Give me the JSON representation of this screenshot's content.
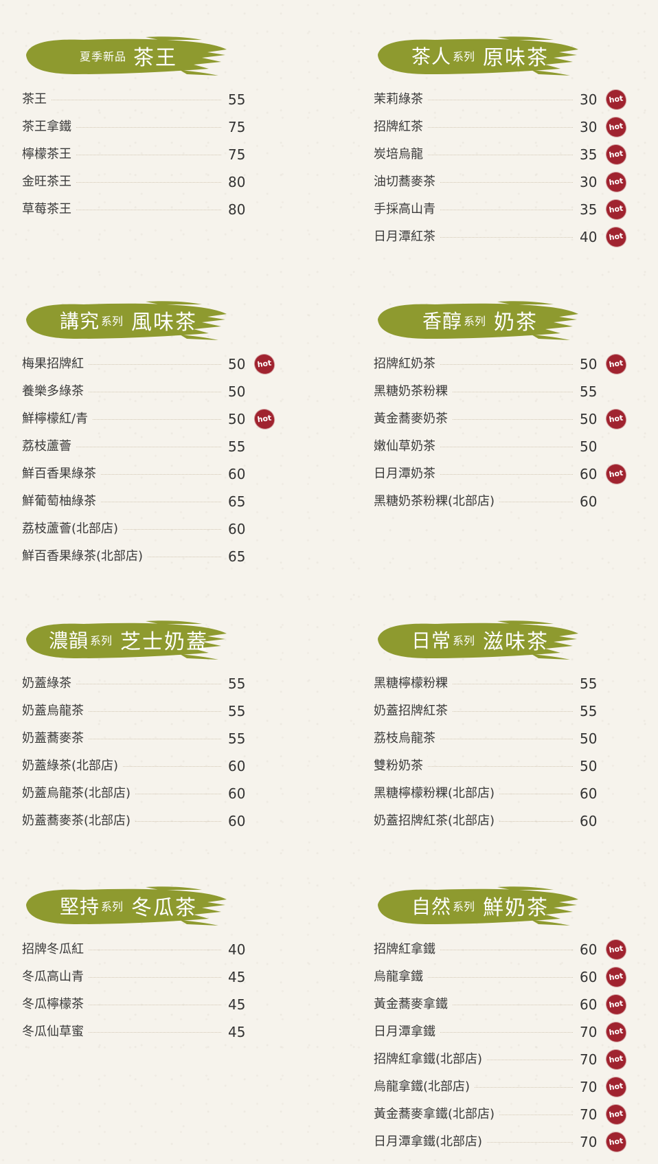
{
  "colors": {
    "banner": "#8e9a2f",
    "hot_badge": "#a0232f",
    "background": "#f6f3ec"
  },
  "hot_badge_label": "hot",
  "sections": [
    {
      "id": "cha-wang",
      "sub": "夏季新品",
      "series": "",
      "title": "茶王",
      "items": [
        {
          "name": "茶王",
          "price": "55",
          "hot": false
        },
        {
          "name": "茶王拿鐵",
          "price": "75",
          "hot": false
        },
        {
          "name": "檸檬茶王",
          "price": "75",
          "hot": false
        },
        {
          "name": "金旺茶王",
          "price": "80",
          "hot": false
        },
        {
          "name": "草莓茶王",
          "price": "80",
          "hot": false
        }
      ]
    },
    {
      "id": "yuan-wei-cha",
      "sub": "茶人",
      "series": "系列",
      "title": "原味茶",
      "items": [
        {
          "name": "茉莉綠茶",
          "price": "30",
          "hot": true
        },
        {
          "name": "招牌紅茶",
          "price": "30",
          "hot": true
        },
        {
          "name": "炭培烏龍",
          "price": "35",
          "hot": true
        },
        {
          "name": "油切蕎麥茶",
          "price": "30",
          "hot": true
        },
        {
          "name": "手採高山青",
          "price": "35",
          "hot": true
        },
        {
          "name": "日月潭紅茶",
          "price": "40",
          "hot": true
        }
      ]
    },
    {
      "id": "feng-wei-cha",
      "sub": "講究",
      "series": "系列",
      "title": "風味茶",
      "items": [
        {
          "name": "梅果招牌紅",
          "price": "50",
          "hot": true
        },
        {
          "name": "養樂多綠茶",
          "price": "50",
          "hot": false
        },
        {
          "name": "鮮檸檬紅/青",
          "price": "50",
          "hot": true
        },
        {
          "name": "荔枝蘆薈",
          "price": "55",
          "hot": false
        },
        {
          "name": "鮮百香果綠茶",
          "price": "60",
          "hot": false
        },
        {
          "name": "鮮葡萄柚綠茶",
          "price": "65",
          "hot": false
        },
        {
          "name": "荔枝蘆薈(北部店)",
          "price": "60",
          "hot": false
        },
        {
          "name": "鮮百香果綠茶(北部店)",
          "price": "65",
          "hot": false
        }
      ]
    },
    {
      "id": "nai-cha",
      "sub": "香醇",
      "series": "系列",
      "title": "奶茶",
      "items": [
        {
          "name": "招牌紅奶茶",
          "price": "50",
          "hot": true
        },
        {
          "name": "黑糖奶茶粉粿",
          "price": "55",
          "hot": false
        },
        {
          "name": "黃金蕎麥奶茶",
          "price": "50",
          "hot": true
        },
        {
          "name": "嫩仙草奶茶",
          "price": "50",
          "hot": false
        },
        {
          "name": "日月潭奶茶",
          "price": "60",
          "hot": true
        },
        {
          "name": "黑糖奶茶粉粿(北部店)",
          "price": "60",
          "hot": false
        }
      ]
    },
    {
      "id": "zhi-shi-nai-gai",
      "sub": "濃韻",
      "series": "系列",
      "title": "芝士奶蓋",
      "items": [
        {
          "name": "奶蓋綠茶",
          "price": "55",
          "hot": false
        },
        {
          "name": "奶蓋烏龍茶",
          "price": "55",
          "hot": false
        },
        {
          "name": "奶蓋蕎麥茶",
          "price": "55",
          "hot": false
        },
        {
          "name": "奶蓋綠茶(北部店)",
          "price": "60",
          "hot": false
        },
        {
          "name": "奶蓋烏龍茶(北部店)",
          "price": "60",
          "hot": false
        },
        {
          "name": "奶蓋蕎麥茶(北部店)",
          "price": "60",
          "hot": false
        }
      ]
    },
    {
      "id": "zi-wei-cha",
      "sub": "日常",
      "series": "系列",
      "title": "滋味茶",
      "items": [
        {
          "name": "黑糖檸檬粉粿",
          "price": "55",
          "hot": false
        },
        {
          "name": "奶蓋招牌紅茶",
          "price": "55",
          "hot": false
        },
        {
          "name": "荔枝烏龍茶",
          "price": "50",
          "hot": false
        },
        {
          "name": "雙粉奶茶",
          "price": "50",
          "hot": false
        },
        {
          "name": "黑糖檸檬粉粿(北部店)",
          "price": "60",
          "hot": false
        },
        {
          "name": "奶蓋招牌紅茶(北部店)",
          "price": "60",
          "hot": false
        }
      ]
    },
    {
      "id": "dong-gua-cha",
      "sub": "堅持",
      "series": "系列",
      "title": "冬瓜茶",
      "items": [
        {
          "name": "招牌冬瓜紅",
          "price": "40",
          "hot": false
        },
        {
          "name": "冬瓜高山青",
          "price": "45",
          "hot": false
        },
        {
          "name": "冬瓜檸檬茶",
          "price": "45",
          "hot": false
        },
        {
          "name": "冬瓜仙草蜜",
          "price": "45",
          "hot": false
        }
      ]
    },
    {
      "id": "xian-nai-cha",
      "sub": "自然",
      "series": "系列",
      "title": "鮮奶茶",
      "items": [
        {
          "name": "招牌紅拿鐵",
          "price": "60",
          "hot": true
        },
        {
          "name": "烏龍拿鐵",
          "price": "60",
          "hot": true
        },
        {
          "name": "黃金蕎麥拿鐵",
          "price": "60",
          "hot": true
        },
        {
          "name": "日月潭拿鐵",
          "price": "70",
          "hot": true
        },
        {
          "name": "招牌紅拿鐵(北部店)",
          "price": "70",
          "hot": true
        },
        {
          "name": "烏龍拿鐵(北部店)",
          "price": "70",
          "hot": true
        },
        {
          "name": "黃金蕎麥拿鐵(北部店)",
          "price": "70",
          "hot": true
        },
        {
          "name": "日月潭拿鐵(北部店)",
          "price": "70",
          "hot": true
        }
      ]
    }
  ]
}
